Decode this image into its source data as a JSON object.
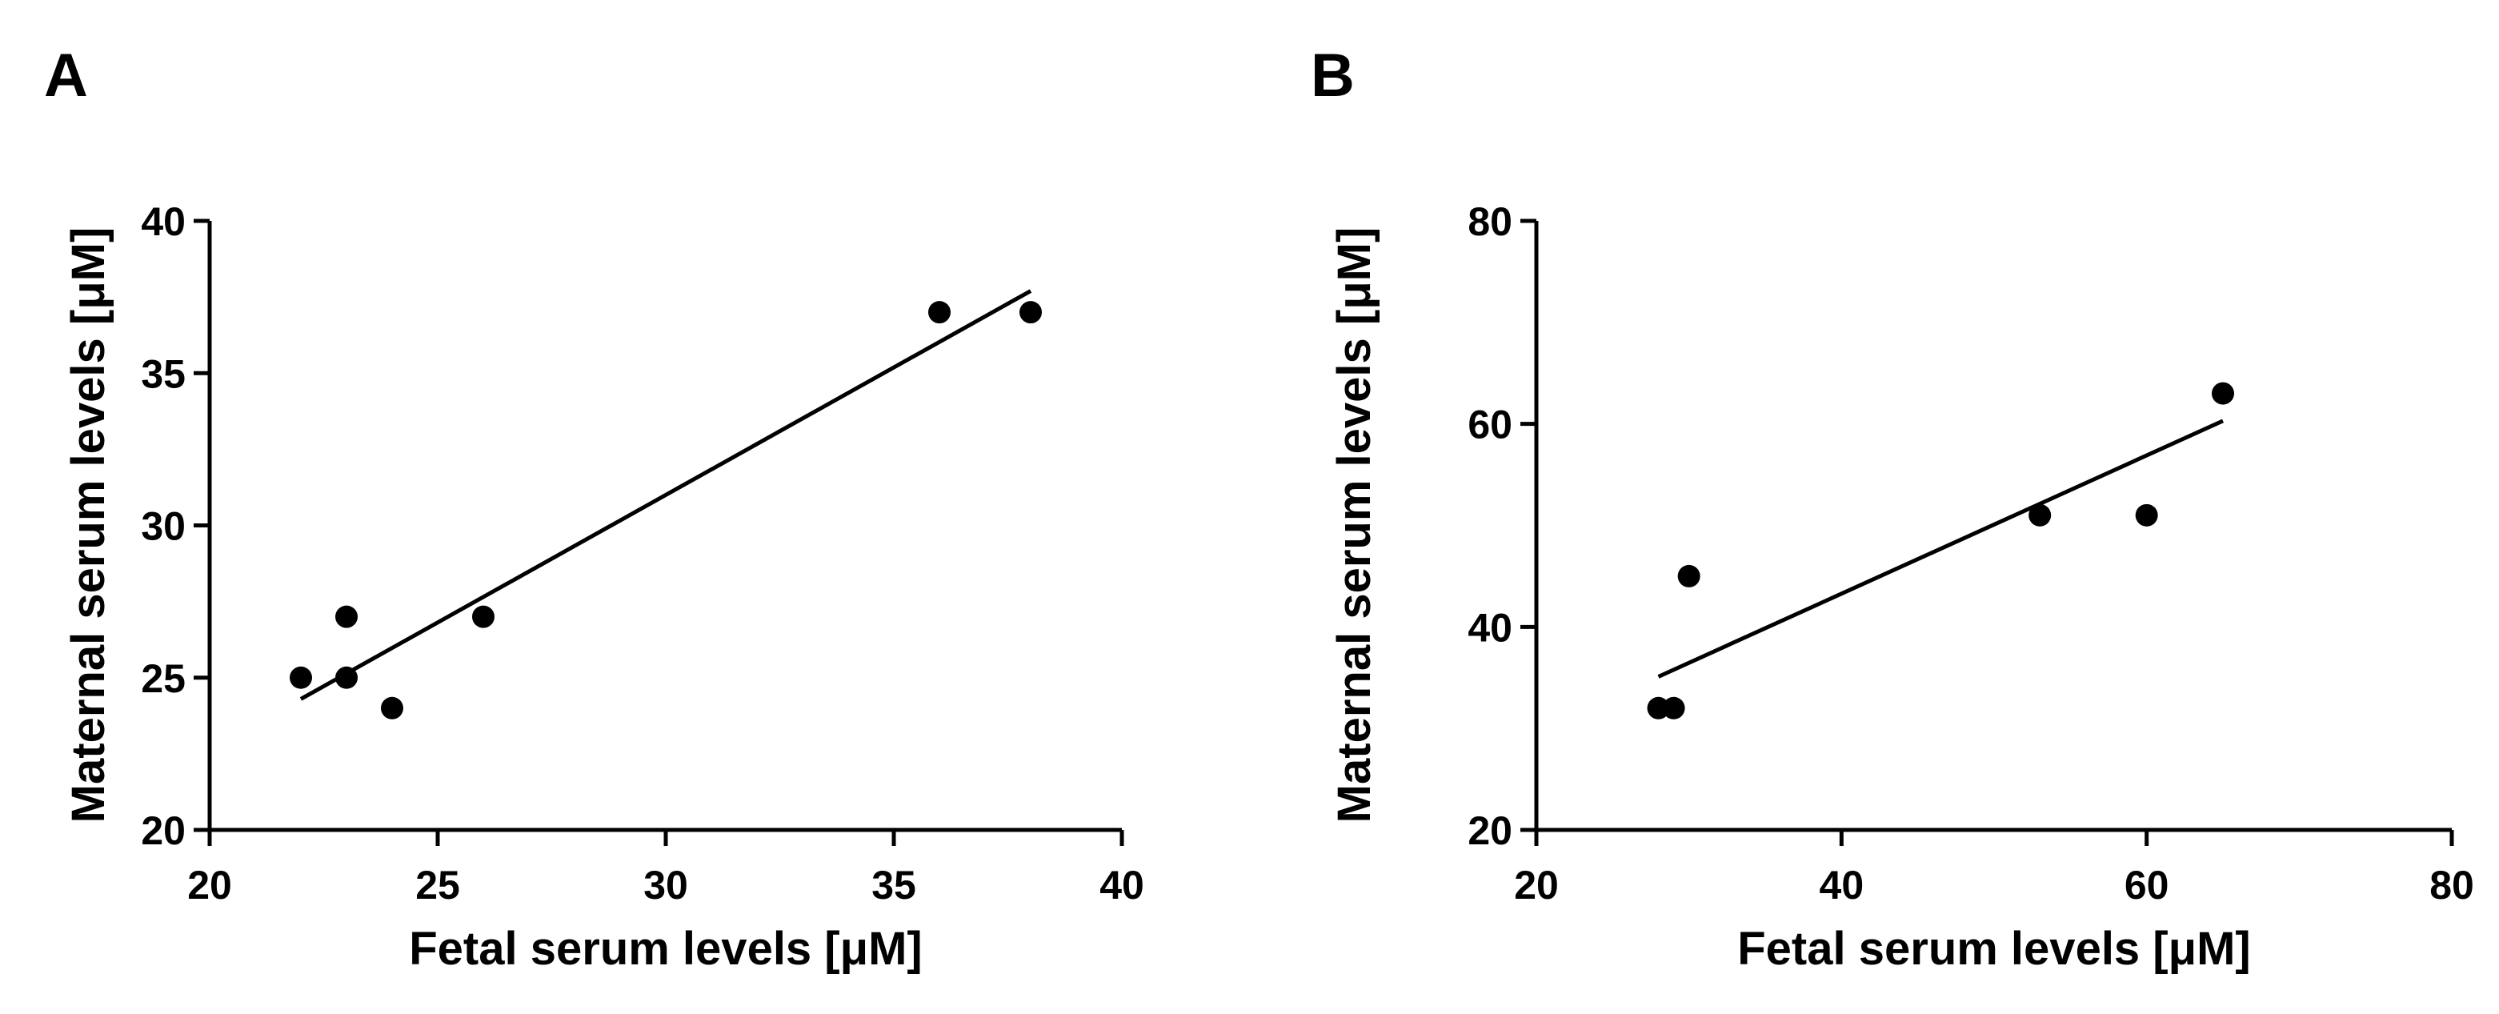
{
  "figure": {
    "panels": [
      {
        "letter": "A"
      },
      {
        "letter": "B"
      }
    ]
  },
  "chart_data": [
    {
      "type": "scatter",
      "panel_label": "A",
      "title": "",
      "xlabel": "Fetal serum levels [μM]",
      "ylabel": "Maternal serum levels [μM]",
      "xlim": [
        20,
        40
      ],
      "ylim": [
        20,
        40
      ],
      "xticks": [
        20,
        25,
        30,
        35,
        40
      ],
      "yticks": [
        20,
        25,
        30,
        35,
        40
      ],
      "x": [
        22,
        23,
        23,
        24,
        26,
        36,
        38
      ],
      "y": [
        25,
        27,
        25,
        24,
        27,
        37,
        37
      ],
      "fit_line": {
        "x": [
          22,
          38
        ],
        "y": [
          24.3,
          37.7
        ]
      },
      "grid": false,
      "legend": "none"
    },
    {
      "type": "scatter",
      "panel_label": "B",
      "title": "",
      "xlabel": "Fetal serum levels [μM]",
      "ylabel": "Maternal serum levels [μM]",
      "xlim": [
        20,
        80
      ],
      "ylim": [
        20,
        80
      ],
      "xticks": [
        20,
        40,
        60,
        80
      ],
      "yticks": [
        20,
        40,
        60,
        80
      ],
      "x": [
        28,
        29,
        30,
        53,
        60,
        65
      ],
      "y": [
        32,
        32,
        45,
        51,
        51,
        63
      ],
      "fit_line": {
        "x": [
          28,
          65
        ],
        "y": [
          35.1,
          60.3
        ]
      },
      "grid": false,
      "legend": "none"
    }
  ]
}
